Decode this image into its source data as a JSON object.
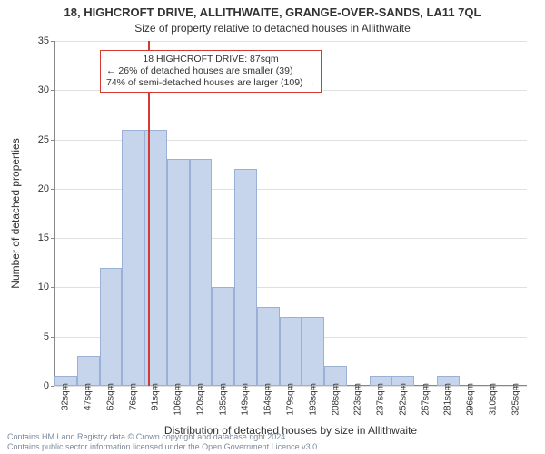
{
  "title": "18, HIGHCROFT DRIVE, ALLITHWAITE, GRANGE-OVER-SANDS, LA11 7QL",
  "subtitle": "Size of property relative to detached houses in Allithwaite",
  "ylabel": "Number of detached properties",
  "xlabel": "Distribution of detached houses by size in Allithwaite",
  "chart": {
    "type": "histogram",
    "ylim": [
      0,
      35
    ],
    "ytick_step": 5,
    "background_color": "#ffffff",
    "grid_color": "#e0e0e0",
    "bar_fill": "#c6d4ec",
    "bar_border": "#9ab0d6",
    "marker_color": "#d43a2f",
    "label_fontsize": 12,
    "tick_fontsize": 11,
    "categories": [
      "32sqm",
      "47sqm",
      "62sqm",
      "76sqm",
      "91sqm",
      "106sqm",
      "120sqm",
      "135sqm",
      "149sqm",
      "164sqm",
      "179sqm",
      "193sqm",
      "208sqm",
      "223sqm",
      "237sqm",
      "252sqm",
      "267sqm",
      "281sqm",
      "296sqm",
      "310sqm",
      "325sqm"
    ],
    "values": [
      1,
      3,
      12,
      26,
      26,
      23,
      23,
      10,
      22,
      8,
      7,
      7,
      2,
      0,
      1,
      1,
      0,
      1,
      0,
      0,
      0
    ],
    "marker_index": 3.72,
    "marker_value_sqm": 87
  },
  "annotation": {
    "line1": "18 HIGHCROFT DRIVE: 87sqm",
    "line2": "← 26% of detached houses are smaller (39)",
    "line3": "74% of semi-detached houses are larger (109) →"
  },
  "footer": {
    "line1": "Contains HM Land Registry data © Crown copyright and database right 2024.",
    "line2": "Contains public sector information licensed under the Open Government Licence v3.0."
  }
}
